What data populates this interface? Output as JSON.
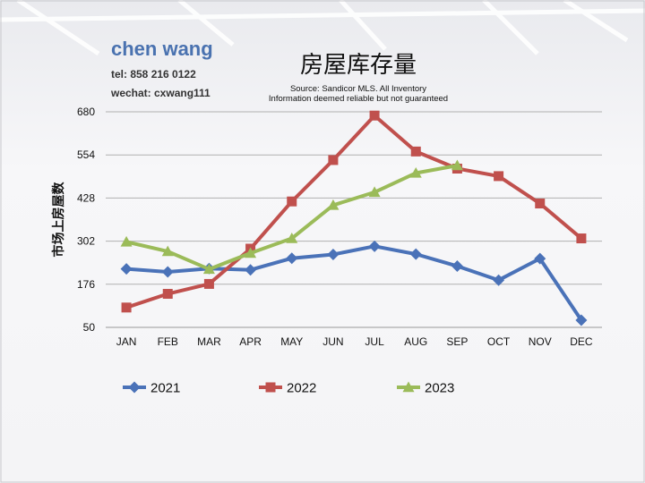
{
  "agent": {
    "name": "chen wang",
    "phone": "tel: 858 216 0122",
    "wechat": "wechat: cxwang111"
  },
  "chart_data": {
    "type": "line",
    "title": "房屋库存量",
    "subtitle_lines": [
      "Source: Sandicor MLS. All Inventory",
      "Information deemed reliable but not guaranteed"
    ],
    "ylabel": "市场上房屋数",
    "xlabel": "",
    "categories": [
      "JAN",
      "FEB",
      "MAR",
      "APR",
      "MAY",
      "JUN",
      "JUL",
      "AUG",
      "SEP",
      "OCT",
      "NOV",
      "DEC"
    ],
    "yticks": [
      50,
      176,
      302,
      428,
      554,
      680
    ],
    "ylim": [
      50,
      680
    ],
    "grid": true,
    "legend_position": "bottom",
    "series": [
      {
        "name": "2021",
        "color": "#4a72b8",
        "marker": "diamond",
        "values": [
          221,
          212,
          222,
          218,
          252,
          263,
          287,
          264,
          229,
          188,
          251,
          71
        ]
      },
      {
        "name": "2022",
        "color": "#c0504d",
        "marker": "square",
        "values": [
          108,
          148,
          177,
          280,
          418,
          539,
          669,
          564,
          514,
          492,
          412,
          310
        ]
      },
      {
        "name": "2023",
        "color": "#9bbb59",
        "marker": "triangle",
        "values": [
          300,
          272,
          220,
          267,
          310,
          407,
          445,
          501,
          523,
          null,
          null,
          null
        ]
      }
    ]
  }
}
